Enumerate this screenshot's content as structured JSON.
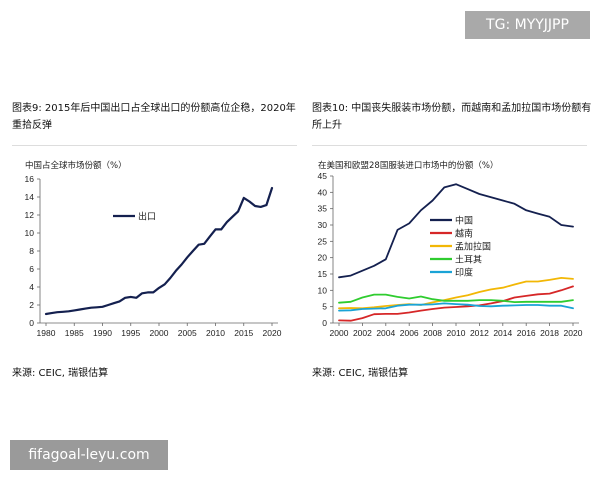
{
  "watermarks": {
    "top": "TG: MYYJJPP",
    "bottom": "fifagoal-leyu.com"
  },
  "left": {
    "title": "图表9: 2015年后中国出口占全球出口的份额高位企稳，2020年重拾反弹",
    "source": "来源: CEIC, 瑞银估算"
  },
  "right": {
    "title": "图表10: 中国丧失服装市场份额，而越南和孟加拉国市场份额有所上升",
    "source": "来源: CEIC, 瑞银估算"
  },
  "chart_data": [
    {
      "type": "line",
      "ylabel": "中国占全球市场份额（%）",
      "ylim": [
        0,
        16
      ],
      "yticks": [
        0,
        2,
        4,
        6,
        8,
        10,
        12,
        14,
        16
      ],
      "xlim": [
        1980,
        2020
      ],
      "xticks": [
        1980,
        1985,
        1990,
        1995,
        2000,
        2005,
        2010,
        2015,
        2020
      ],
      "legend_position": "upper-left",
      "x": [
        1980,
        1981,
        1982,
        1983,
        1984,
        1985,
        1986,
        1987,
        1988,
        1989,
        1990,
        1991,
        1992,
        1993,
        1994,
        1995,
        1996,
        1997,
        1998,
        1999,
        2000,
        2001,
        2002,
        2003,
        2004,
        2005,
        2006,
        2007,
        2008,
        2009,
        2010,
        2011,
        2012,
        2013,
        2014,
        2015,
        2016,
        2017,
        2018,
        2019,
        2020
      ],
      "series": [
        {
          "name": "出口",
          "color": "#14204f",
          "values": [
            1.0,
            1.1,
            1.2,
            1.25,
            1.3,
            1.4,
            1.5,
            1.6,
            1.7,
            1.75,
            1.8,
            2.0,
            2.2,
            2.4,
            2.8,
            2.9,
            2.8,
            3.3,
            3.4,
            3.4,
            3.9,
            4.3,
            5.0,
            5.8,
            6.5,
            7.3,
            8.0,
            8.7,
            8.8,
            9.6,
            10.4,
            10.4,
            11.2,
            11.8,
            12.4,
            13.9,
            13.5,
            13.0,
            12.9,
            13.1,
            15.0
          ]
        }
      ]
    },
    {
      "type": "line",
      "ylabel": "在美国和欧盟28国服装进口市场中的份额（%）",
      "ylim": [
        0,
        45
      ],
      "yticks": [
        0,
        5,
        10,
        15,
        20,
        25,
        30,
        35,
        40,
        45
      ],
      "xlim": [
        2000,
        2020
      ],
      "xticks": [
        2000,
        2002,
        2004,
        2006,
        2008,
        2010,
        2012,
        2014,
        2016,
        2018,
        2020
      ],
      "legend_position": "center",
      "x": [
        2000,
        2001,
        2002,
        2003,
        2004,
        2005,
        2006,
        2007,
        2008,
        2009,
        2010,
        2011,
        2012,
        2013,
        2014,
        2015,
        2016,
        2017,
        2018,
        2019,
        2020
      ],
      "series": [
        {
          "name": "中国",
          "color": "#14204f",
          "values": [
            14,
            14.5,
            16,
            17.5,
            19.5,
            28.5,
            30.5,
            34.5,
            37.5,
            41.5,
            42.5,
            41,
            39.5,
            38.5,
            37.5,
            36.5,
            34.5,
            33.5,
            32.5,
            30,
            29.5
          ]
        },
        {
          "name": "越南",
          "color": "#d62728",
          "values": [
            0.8,
            0.7,
            1.5,
            2.7,
            2.8,
            2.8,
            3.2,
            3.8,
            4.3,
            4.7,
            4.9,
            5.1,
            5.4,
            6,
            6.7,
            7.8,
            8.3,
            8.8,
            9,
            10,
            11.2
          ]
        },
        {
          "name": "孟加拉国",
          "color": "#f2b705",
          "values": [
            4.5,
            4.6,
            4.5,
            4.8,
            5.2,
            5.5,
            5.8,
            5.5,
            6.3,
            7,
            7.8,
            8.5,
            9.5,
            10.3,
            10.8,
            11.8,
            12.7,
            12.7,
            13.2,
            13.8,
            13.5
          ]
        },
        {
          "name": "土耳其",
          "color": "#2fcc2f",
          "values": [
            6.2,
            6.5,
            7.8,
            8.7,
            8.7,
            8,
            7.5,
            8.1,
            7.3,
            6.8,
            6.8,
            6.8,
            7,
            7,
            6.8,
            6.4,
            6.5,
            6.5,
            6.5,
            6.5,
            7
          ]
        },
        {
          "name": "印度",
          "color": "#1aa3d6",
          "values": [
            3.8,
            3.9,
            4.3,
            4.4,
            4.5,
            5.3,
            5.6,
            5.6,
            5.7,
            6,
            5.8,
            5.6,
            5.2,
            5.1,
            5.3,
            5.4,
            5.5,
            5.5,
            5.3,
            5.3,
            4.5
          ]
        }
      ]
    }
  ]
}
